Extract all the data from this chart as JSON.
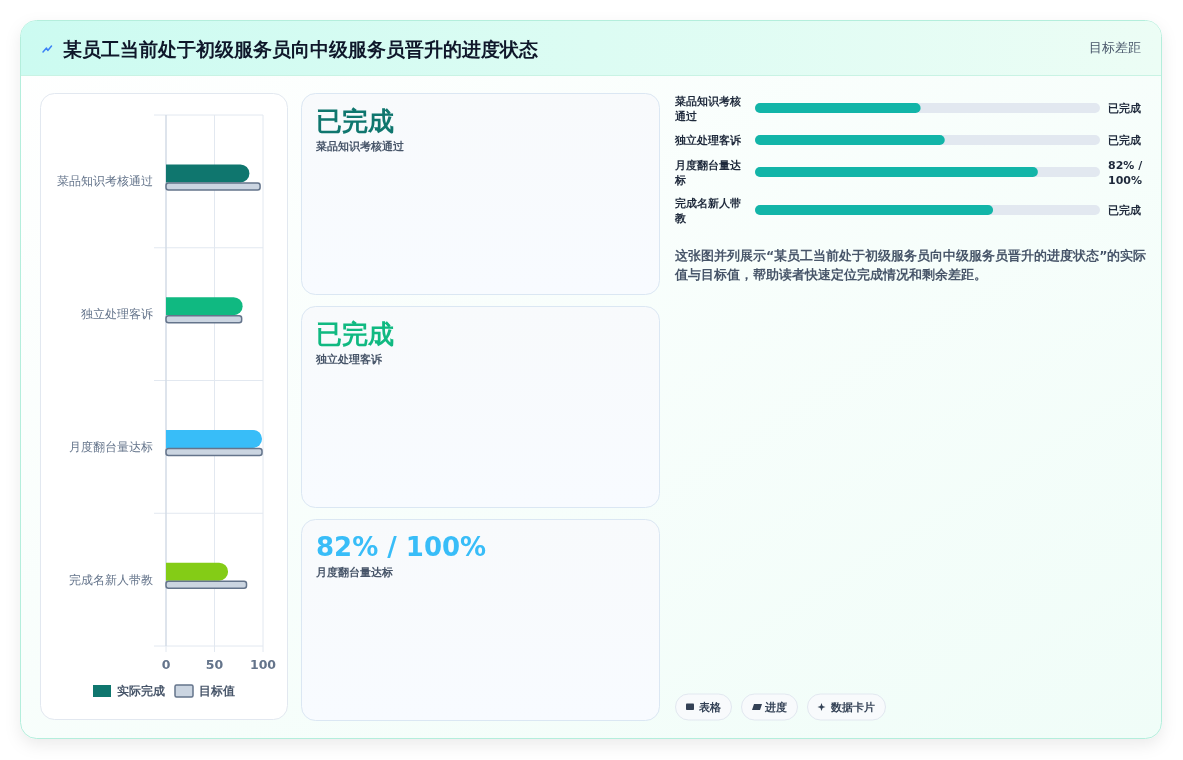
{
  "chart_data": [
    {
      "type": "bar",
      "orientation": "horizontal",
      "title": "某员工当前处于初级服务员向中级服务员晋升的进度状态",
      "categories": [
        "菜品知识考核通过",
        "独立处理客诉",
        "月度翻台量达标",
        "完成名新人带教"
      ],
      "series": [
        {
          "name": "实际完成",
          "color": "#0f766e",
          "colors": [
            "#0f766e",
            "#10b981",
            "#38bdf8",
            "#84cc16"
          ],
          "values": [
            86,
            79,
            99,
            64
          ]
        },
        {
          "name": "目标值",
          "color": "#cbd5e1",
          "values": [
            97,
            78,
            99,
            83
          ]
        }
      ],
      "xlim": [
        0,
        100
      ],
      "xticks": [
        0,
        50,
        100
      ],
      "grid": true,
      "legend": "bottom"
    },
    {
      "type": "other",
      "annotations": [
        "已完成",
        "菜品知识考核通过",
        "已完成",
        "独立处理客诉",
        "82% / 100%",
        "月度翻台量达标"
      ]
    },
    {
      "type": "bar",
      "orientation": "horizontal",
      "subtitle": "目标差距",
      "categories": [
        "菜品知识考核通过",
        "独立处理客诉",
        "月度翻台量达标",
        "完成名新人带教"
      ],
      "series": [
        {
          "color": "#12b5a8",
          "values": [
            48,
            55,
            82,
            69
          ],
          "value_labels": [
            "已完成",
            "已完成",
            "82% / 100%",
            "已完成"
          ]
        }
      ],
      "xlim": [
        0,
        100
      ],
      "tick_labels": "y",
      "annotations": [
        "这张图并列展示“某员工当前处于初级服务员向中级服务员晋升的进度状态”的实际值与目标值，帮助读者快速定位完成情况和剩余差距。",
        "表格",
        "进度",
        "数据卡片"
      ]
    }
  ]
}
